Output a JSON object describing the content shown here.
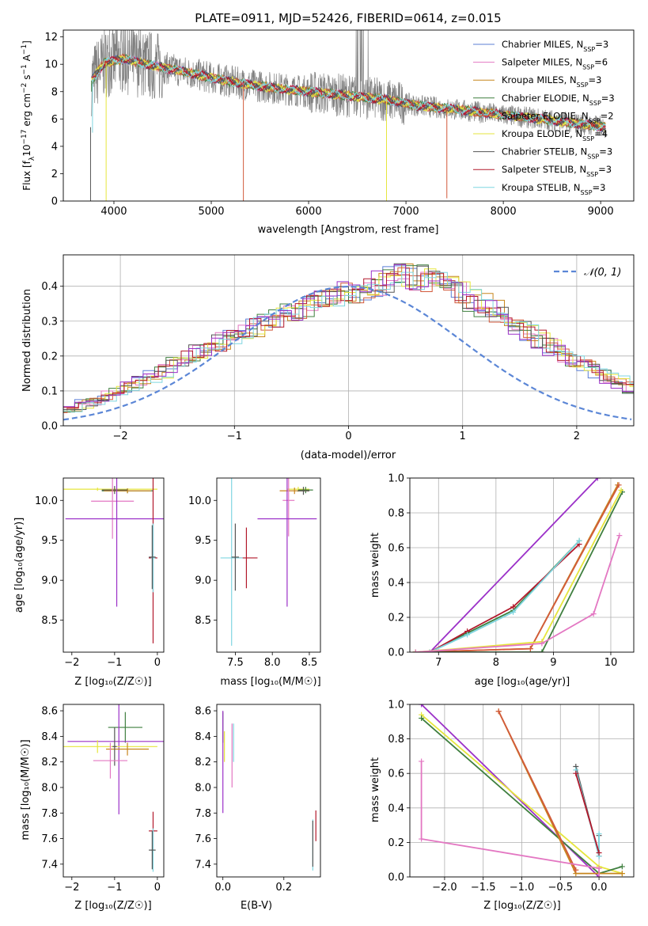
{
  "colors": {
    "Chabrier MILES": "#5b7fd6",
    "Salpeter MILES": "#e377c2",
    "Kroupa MILES": "#c7861d",
    "Chabrier ELODIE": "#3f7f3f",
    "Salpeter ELODIE": "#d25a3c",
    "Kroupa ELODIE": "#e6e63c",
    "Chabrier STELIB": "#555555",
    "Salpeter STELIB": "#b2182b",
    "Kroupa STELIB": "#7fd6e0",
    "purple": "#9b30c8",
    "normal": "#5b86d6"
  },
  "chart_data": [
    {
      "type": "line",
      "title": "PLATE=0911, MJD=52426, FIBERID=0614, z=0.015",
      "xlabel": "wavelength [Angstrom, rest frame]",
      "ylabel_parts": [
        "Flux [f",
        "λ",
        "10",
        "−17",
        " erg cm",
        "−2",
        " s",
        "−1",
        " A",
        "−1",
        "]"
      ],
      "xlim": [
        3480,
        9340
      ],
      "ylim": [
        0,
        12.5
      ],
      "xticks": [
        4000,
        5000,
        6000,
        7000,
        8000,
        9000
      ],
      "yticks": [
        0,
        2,
        4,
        6,
        8,
        10,
        12
      ],
      "legend": [
        {
          "name": "Chabrier MILES",
          "n": "3"
        },
        {
          "name": "Salpeter MILES",
          "n": "6"
        },
        {
          "name": "Kroupa MILES",
          "n": "3"
        },
        {
          "name": "Chabrier ELODIE",
          "n": "3"
        },
        {
          "name": "Salpeter ELODIE",
          "n": "2"
        },
        {
          "name": "Kroupa ELODIE",
          "n": "4"
        },
        {
          "name": "Chabrier STELIB",
          "n": "3"
        },
        {
          "name": "Salpeter STELIB",
          "n": "3"
        },
        {
          "name": "Kroupa STELIB",
          "n": "3"
        }
      ],
      "legend_nssp": "N",
      "legend_nssp_sub": "SSP",
      "legend_placement": "upper-right",
      "grid": false,
      "model_continuum": [
        [
          3770,
          8.8
        ],
        [
          3900,
          10.1
        ],
        [
          4100,
          10.4
        ],
        [
          4400,
          9.9
        ],
        [
          4700,
          9.5
        ],
        [
          5000,
          9.0
        ],
        [
          5300,
          8.6
        ],
        [
          5600,
          8.3
        ],
        [
          6000,
          8.0
        ],
        [
          6400,
          7.7
        ],
        [
          6800,
          7.4
        ],
        [
          7100,
          7.0
        ],
        [
          7500,
          6.7
        ],
        [
          8000,
          6.3
        ],
        [
          8500,
          5.9
        ],
        [
          9050,
          5.4
        ]
      ],
      "data_wavelength_range": [
        3770,
        9050
      ]
    },
    {
      "type": "step-histogram",
      "xlabel": "(data-model)/error",
      "ylabel": "Normed distribution",
      "xlim": [
        -2.5,
        2.5
      ],
      "ylim": [
        0,
        0.49
      ],
      "xticks": [
        -2,
        -1,
        0,
        1,
        2
      ],
      "yticks": [
        0.0,
        0.1,
        0.2,
        0.3,
        0.4
      ],
      "grid": true,
      "bin_width": 0.1,
      "base_profile": [
        0.024,
        0.028,
        0.033,
        0.038,
        0.045,
        0.052,
        0.061,
        0.072,
        0.084,
        0.097,
        0.111,
        0.126,
        0.142,
        0.158,
        0.175,
        0.192,
        0.209,
        0.225,
        0.241,
        0.256,
        0.271,
        0.285,
        0.298,
        0.31,
        0.322,
        0.333,
        0.344,
        0.355,
        0.366,
        0.377,
        0.388,
        0.398,
        0.408,
        0.417,
        0.425,
        0.428,
        0.424,
        0.413,
        0.398,
        0.38,
        0.362,
        0.345,
        0.328,
        0.311,
        0.292,
        0.271,
        0.249,
        0.227,
        0.207,
        0.189,
        0.172,
        0.156,
        0.14,
        0.124,
        0.108,
        0.093,
        0.079,
        0.067,
        0.056,
        0.047,
        0.039,
        0.033,
        0.028,
        0.024,
        0.021,
        0.019,
        0.017,
        0.016,
        0.015,
        0.015
      ],
      "legend": [
        {
          "name": "𝒩(0, 1)",
          "style": "dashed"
        }
      ],
      "legend_placement": "upper-right"
    },
    {
      "type": "errorbar-scatter",
      "xlabel": "Z [log₁₀(Z/Z☉)]",
      "ylabel": "age  [log₁₀(age/yr)]",
      "xlim": [
        -2.2,
        0.15
      ],
      "ylim": [
        8.1,
        10.28
      ],
      "xticks": [
        -2,
        -1,
        0
      ],
      "yticks": [
        8.5,
        9.0,
        9.5,
        10.0
      ],
      "points": [
        {
          "c": "Kroupa ELODIE",
          "x": -1.4,
          "y": 10.14,
          "xe": 1.4,
          "ye": 0.02
        },
        {
          "c": "Chabrier ELODIE",
          "x": -0.7,
          "y": 10.12,
          "xe": 0.6,
          "ye": 0.03
        },
        {
          "c": "Kroupa MILES",
          "x": -0.7,
          "y": 10.12,
          "xe": 0.55,
          "ye": 0.03
        },
        {
          "c": "Chabrier STELIB",
          "x": -1.0,
          "y": 10.13,
          "xe": 0.3,
          "ye": 0.05
        },
        {
          "c": "Salpeter MILES",
          "x": -1.05,
          "y": 9.99,
          "xe": 0.5,
          "ye": 0.47
        },
        {
          "c": "purple",
          "x": -0.95,
          "y": 9.77,
          "xe": 1.2,
          "ye": 1.1
        },
        {
          "c": "Salpeter STELIB",
          "x": -0.1,
          "y": 9.28,
          "xe": 0.1,
          "ye": 1.07
        },
        {
          "c": "Kroupa STELIB",
          "x": -0.1,
          "y": 9.28,
          "xe": 0.05,
          "ye": 0.43
        },
        {
          "c": "Chabrier STELIB",
          "x": -0.12,
          "y": 9.29,
          "xe": 0.08,
          "ye": 0.4
        }
      ]
    },
    {
      "type": "errorbar-scatter",
      "xlabel": "mass [log₁₀(M/M☉)]",
      "ylabel": "",
      "xlim": [
        7.25,
        8.65
      ],
      "ylim": [
        8.1,
        10.28
      ],
      "xticks": [
        7.5,
        8.0,
        8.5
      ],
      "yticks": [
        8.5,
        9.0,
        9.5,
        10.0
      ],
      "points": [
        {
          "c": "Kroupa ELODIE",
          "x": 8.35,
          "y": 10.14,
          "xe": 0.15,
          "ye": 0.03
        },
        {
          "c": "Chabrier ELODIE",
          "x": 8.45,
          "y": 10.13,
          "xe": 0.1,
          "ye": 0.04
        },
        {
          "c": "Kroupa MILES",
          "x": 8.3,
          "y": 10.12,
          "xe": 0.2,
          "ye": 0.04
        },
        {
          "c": "Chabrier STELIB",
          "x": 8.42,
          "y": 10.12,
          "xe": 0.08,
          "ye": 0.05
        },
        {
          "c": "Salpeter MILES",
          "x": 8.22,
          "y": 10.0,
          "xe": 0.08,
          "ye": 0.45
        },
        {
          "c": "purple",
          "x": 8.2,
          "y": 9.77,
          "xe": 0.4,
          "ye": 1.1
        },
        {
          "c": "Salpeter STELIB",
          "x": 7.65,
          "y": 9.28,
          "xe": 0.15,
          "ye": 0.38
        },
        {
          "c": "Kroupa STELIB",
          "x": 7.45,
          "y": 9.28,
          "xe": 0.15,
          "ye": 1.1
        },
        {
          "c": "Chabrier STELIB",
          "x": 7.5,
          "y": 9.29,
          "xe": 0.05,
          "ye": 0.42
        }
      ]
    },
    {
      "type": "line",
      "xlabel": "age  [log₁₀(age/yr)]",
      "ylabel": "mass weight",
      "xlim": [
        6.5,
        10.4
      ],
      "ylim": [
        0,
        1.0
      ],
      "xticks": [
        7,
        8,
        9,
        10
      ],
      "yticks": [
        0.0,
        0.2,
        0.4,
        0.6,
        0.8,
        1.0
      ],
      "grid": true,
      "series": [
        {
          "c": "purple",
          "x": [
            6.85,
            9.77
          ],
          "y": [
            0.0,
            1.0
          ]
        },
        {
          "c": "Chabrier ELODIE",
          "x": [
            6.85,
            7.5,
            8.3,
            9.45
          ],
          "y": [
            0.0,
            0.11,
            0.24,
            0.64
          ]
        },
        {
          "c": "Salpeter STELIB",
          "x": [
            6.85,
            7.5,
            8.3,
            9.45
          ],
          "y": [
            0.0,
            0.12,
            0.26,
            0.62
          ]
        },
        {
          "c": "Kroupa STELIB",
          "x": [
            6.85,
            7.5,
            8.3,
            9.45
          ],
          "y": [
            0.0,
            0.1,
            0.23,
            0.64
          ]
        },
        {
          "c": "Kroupa MILES",
          "x": [
            6.6,
            8.6,
            10.12
          ],
          "y": [
            0.0,
            0.02,
            0.96
          ]
        },
        {
          "c": "Salpeter ELODIE",
          "x": [
            6.6,
            8.6,
            10.14
          ],
          "y": [
            0.0,
            0.02,
            0.96
          ]
        },
        {
          "c": "Chabrier ELODIE",
          "x": [
            6.6,
            8.8,
            10.2
          ],
          "y": [
            0.0,
            0.0,
            0.92
          ]
        },
        {
          "c": "Kroupa ELODIE",
          "x": [
            6.6,
            8.8,
            10.18
          ],
          "y": [
            0.0,
            0.06,
            0.93
          ]
        },
        {
          "c": "Salpeter MILES",
          "x": [
            6.6,
            8.8,
            9.7,
            10.15
          ],
          "y": [
            0.0,
            0.05,
            0.22,
            0.67
          ]
        }
      ]
    },
    {
      "type": "errorbar-scatter",
      "xlabel": "Z [log₁₀(Z/Z☉)]",
      "ylabel": "mass [log₁₀(M/M☉)]",
      "xlim": [
        -2.2,
        0.15
      ],
      "ylim": [
        7.3,
        8.65
      ],
      "xticks": [
        -2,
        -1,
        0
      ],
      "yticks": [
        7.4,
        7.6,
        7.8,
        8.0,
        8.2,
        8.4,
        8.6
      ],
      "points": [
        {
          "c": "Chabrier ELODIE",
          "x": -0.75,
          "y": 8.47,
          "xe": 0.4,
          "ye": 0.12
        },
        {
          "c": "purple",
          "x": -0.9,
          "y": 8.36,
          "xe": 1.2,
          "ye": 0.57
        },
        {
          "c": "Kroupa ELODIE",
          "x": -1.4,
          "y": 8.32,
          "xe": 1.4,
          "ye": 0.05
        },
        {
          "c": "Kroupa MILES",
          "x": -0.7,
          "y": 8.3,
          "xe": 0.5,
          "ye": 0.05
        },
        {
          "c": "Chabrier STELIB",
          "x": -1.0,
          "y": 8.32,
          "xe": 0.05,
          "ye": 0.15
        },
        {
          "c": "Salpeter MILES",
          "x": -1.1,
          "y": 8.21,
          "xe": 0.4,
          "ye": 0.14
        },
        {
          "c": "Salpeter STELIB",
          "x": -0.1,
          "y": 7.66,
          "xe": 0.1,
          "ye": 0.15
        },
        {
          "c": "Kroupa STELIB",
          "x": -0.1,
          "y": 7.51,
          "xe": 0.05,
          "ye": 0.17
        },
        {
          "c": "Chabrier STELIB",
          "x": -0.12,
          "y": 7.51,
          "xe": 0.08,
          "ye": 0.15
        }
      ]
    },
    {
      "type": "errorbar-scatter",
      "xlabel": "E(B-V)",
      "ylabel": "",
      "xlim": [
        -0.02,
        0.32
      ],
      "ylim": [
        7.3,
        8.65
      ],
      "xticks": [
        0.0,
        0.2
      ],
      "yticks": [
        7.4,
        7.6,
        7.8,
        8.0,
        8.2,
        8.4,
        8.6
      ],
      "points": [
        {
          "c": "Chabrier ELODIE",
          "x": 0.0,
          "y": 8.47,
          "xe": 0.0,
          "ye": 0.12
        },
        {
          "c": "purple",
          "x": 0.0,
          "y": 8.2,
          "xe": 0.0,
          "ye": 0.4
        },
        {
          "c": "Kroupa ELODIE",
          "x": 0.005,
          "y": 8.32,
          "xe": 0.0,
          "ye": 0.12
        },
        {
          "c": "Salpeter MILES",
          "x": 0.03,
          "y": 8.25,
          "xe": 0.0,
          "ye": 0.25
        },
        {
          "c": "Kroupa STELIB",
          "x": 0.035,
          "y": 8.35,
          "xe": 0.0,
          "ye": 0.15
        },
        {
          "c": "Salpeter STELIB",
          "x": 0.305,
          "y": 7.7,
          "xe": 0.0,
          "ye": 0.12
        },
        {
          "c": "Kroupa STELIB",
          "x": 0.295,
          "y": 7.55,
          "xe": 0.0,
          "ye": 0.2
        },
        {
          "c": "Chabrier STELIB",
          "x": 0.295,
          "y": 7.56,
          "xe": 0.0,
          "ye": 0.18
        }
      ]
    },
    {
      "type": "line",
      "xlabel": "Z [log₁₀(Z/Z☉)]",
      "ylabel": "mass weight",
      "xlim": [
        -2.45,
        0.45
      ],
      "ylim": [
        0,
        1.0
      ],
      "xticks": [
        -2.0,
        -1.5,
        -1.0,
        -0.5,
        0.0
      ],
      "yticks": [
        0.0,
        0.2,
        0.4,
        0.6,
        0.8,
        1.0
      ],
      "grid": true,
      "series": [
        {
          "c": "purple",
          "x": [
            -2.3,
            0.0
          ],
          "y": [
            1.0,
            0.0
          ]
        },
        {
          "c": "Kroupa ELODIE",
          "x": [
            -2.3,
            0.0,
            0.3
          ],
          "y": [
            0.94,
            0.06,
            0.02
          ]
        },
        {
          "c": "Chabrier ELODIE",
          "x": [
            -2.3,
            0.0,
            0.3
          ],
          "y": [
            0.92,
            0.02,
            0.06
          ]
        },
        {
          "c": "Kroupa MILES",
          "x": [
            -1.3,
            -0.3,
            0.3
          ],
          "y": [
            0.96,
            0.02,
            0.02
          ]
        },
        {
          "c": "Salpeter ELODIE",
          "x": [
            -1.3,
            -0.3
          ],
          "y": [
            0.96,
            0.04
          ]
        },
        {
          "c": "Chabrier STELIB",
          "x": [
            -0.3,
            0.0,
            0.0
          ],
          "y": [
            0.64,
            0.12,
            0.24
          ]
        },
        {
          "c": "Kroupa STELIB",
          "x": [
            -0.3,
            0.0,
            0.0
          ],
          "y": [
            0.62,
            0.12,
            0.25
          ]
        },
        {
          "c": "Salpeter STELIB",
          "x": [
            -0.3,
            0.0
          ],
          "y": [
            0.6,
            0.14
          ]
        },
        {
          "c": "Salpeter MILES",
          "x": [
            -2.3,
            -2.3,
            0.0,
            0.0
          ],
          "y": [
            0.67,
            0.22,
            0.05,
            0.0
          ]
        }
      ]
    }
  ]
}
